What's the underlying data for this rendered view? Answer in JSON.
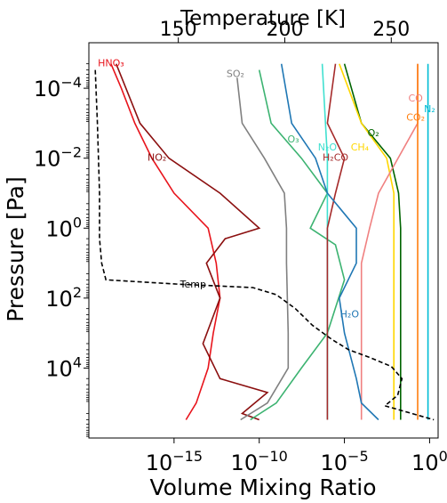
{
  "chart_data": {
    "type": "line",
    "title": "",
    "xlabel": "Volume Mixing Ratio",
    "x2label": "Temperature [K]",
    "ylabel": "Pressure [Pa]",
    "xscale": "log",
    "yscale": "log",
    "y_inverted": true,
    "xlim": [
      1e-20,
      3.16
    ],
    "x2lim": [
      108,
      272
    ],
    "ylim": [
      1000000.0,
      5e-06
    ],
    "x_ticks": [
      {
        "value": 1e-15,
        "base": "10",
        "exp": "−15"
      },
      {
        "value": 1e-10,
        "base": "10",
        "exp": "−10"
      },
      {
        "value": 1e-05,
        "base": "10",
        "exp": "−5"
      },
      {
        "value": 1,
        "base": "10",
        "exp": "0"
      }
    ],
    "x2_ticks": [
      {
        "value": 150,
        "label": "150"
      },
      {
        "value": 200,
        "label": "200"
      },
      {
        "value": 250,
        "label": "250"
      }
    ],
    "y_ticks": [
      {
        "value": 0.0001,
        "base": "10",
        "exp": "−4"
      },
      {
        "value": 0.01,
        "base": "10",
        "exp": "−2"
      },
      {
        "value": 1,
        "base": "10",
        "exp": "0"
      },
      {
        "value": 100,
        "base": "10",
        "exp": "2"
      },
      {
        "value": 10000,
        "base": "10",
        "exp": "4"
      }
    ],
    "grid": false,
    "legend": "none",
    "temperature": {
      "name": "Temp",
      "color": "#000000",
      "style": "dashed",
      "points": [
        [
          111,
          3e-05
        ],
        [
          112,
          0.001
        ],
        [
          113,
          0.1
        ],
        [
          113,
          2
        ],
        [
          114,
          10
        ],
        [
          116,
          30
        ],
        [
          150,
          40
        ],
        [
          185,
          50
        ],
        [
          196,
          80
        ],
        [
          205,
          200
        ],
        [
          213,
          600
        ],
        [
          222,
          1500
        ],
        [
          230,
          3000
        ],
        [
          240,
          5000
        ],
        [
          250,
          9000
        ],
        [
          255,
          20000
        ],
        [
          253,
          60000
        ],
        [
          247,
          120000
        ],
        [
          270,
          300000
        ]
      ]
    },
    "series": [
      {
        "name": "HNO₃",
        "color": "#e8141c",
        "label_pos": [
          2e-19,
          2e-05
        ],
        "points": [
          [
            2e-19,
            2e-05
          ],
          [
            8e-19,
            0.0001
          ],
          [
            5e-18,
            0.001
          ],
          [
            5e-17,
            0.01
          ],
          [
            1e-15,
            0.1
          ],
          [
            1e-13,
            1
          ],
          [
            3e-13,
            10
          ],
          [
            5e-13,
            100
          ],
          [
            2e-13,
            1000
          ],
          [
            1e-13,
            10000
          ],
          [
            2e-14,
            100000
          ],
          [
            5e-15,
            300000
          ]
        ]
      },
      {
        "name": "NO₂",
        "color": "#8b0f0f",
        "label_pos": [
          1e-16,
          0.01
        ],
        "points": [
          [
            4e-19,
            2e-05
          ],
          [
            1e-17,
            0.001
          ],
          [
            5e-16,
            0.01
          ],
          [
            5e-13,
            0.1
          ],
          [
            1e-10,
            1
          ],
          [
            1e-12,
            2
          ],
          [
            8e-14,
            10
          ],
          [
            5e-13,
            100
          ],
          [
            5e-14,
            2000
          ],
          [
            5e-13,
            20000
          ],
          [
            3e-10,
            50000
          ],
          [
            1e-11,
            200000
          ],
          [
            1e-10,
            300000
          ]
        ]
      },
      {
        "name": "SO₂",
        "color": "#808080",
        "label_pos": [
          4e-12,
          4e-05
        ],
        "points": [
          [
            5e-12,
            5e-05
          ],
          [
            1e-11,
            0.001
          ],
          [
            2e-10,
            0.01
          ],
          [
            3e-09,
            0.1
          ],
          [
            4e-09,
            1
          ],
          [
            4e-09,
            10
          ],
          [
            5e-09,
            1000
          ],
          [
            5e-09,
            10000
          ],
          [
            3e-10,
            100000
          ],
          [
            8e-12,
            300000
          ]
        ]
      },
      {
        "name": "O₃",
        "color": "#3cb371",
        "label_pos": [
          1e-08,
          0.003
        ],
        "points": [
          [
            1e-10,
            3e-05
          ],
          [
            5e-10,
            0.001
          ],
          [
            3e-08,
            0.01
          ],
          [
            1e-06,
            0.1
          ],
          [
            1e-07,
            1
          ],
          [
            3e-06,
            3
          ],
          [
            1e-05,
            30
          ],
          [
            1e-06,
            1000
          ],
          [
            3e-08,
            10000
          ],
          [
            1e-09,
            100000
          ],
          [
            3e-11,
            300000
          ]
        ]
      },
      {
        "name": "O₂",
        "color": "#006400",
        "label_pos": [
          0.0005,
          0.002
        ],
        "points": [
          [
            1e-05,
            2e-05
          ],
          [
            0.0001,
            0.001
          ],
          [
            0.005,
            0.01
          ],
          [
            0.015,
            0.1
          ],
          [
            0.02,
            1
          ],
          [
            0.02,
            300000
          ]
        ]
      },
      {
        "name": "N₂O",
        "color": "#40e0d0",
        "label_pos": [
          1e-06,
          0.005
        ],
        "points": [
          [
            5e-07,
            2e-05
          ],
          [
            1e-06,
            0.01
          ],
          [
            1e-06,
            300000
          ]
        ]
      },
      {
        "name": "CH₄",
        "color": "#ffd700",
        "label_pos": [
          8e-05,
          0.005
        ],
        "points": [
          [
            5e-06,
            2e-05
          ],
          [
            0.0001,
            0.001
          ],
          [
            0.003,
            0.01
          ],
          [
            0.008,
            0.1
          ],
          [
            0.008,
            300000
          ]
        ]
      },
      {
        "name": "CO",
        "color": "#f08080",
        "label_pos": [
          0.15,
          0.0002
        ],
        "points": [
          [
            0.2,
            2e-05
          ],
          [
            0.2,
            0.001
          ],
          [
            0.001,
            0.1
          ],
          [
            0.0003,
            1
          ],
          [
            0.0001,
            10
          ],
          [
            0.0001,
            100
          ],
          [
            0.0001,
            300000
          ]
        ]
      },
      {
        "name": "CO₂",
        "color": "#ff7f0e",
        "label_pos": [
          0.15,
          0.0007
        ],
        "points": [
          [
            0.2,
            2e-05
          ],
          [
            0.2,
            300000
          ]
        ]
      },
      {
        "name": "N₂",
        "color": "#00bcd4",
        "label_pos": [
          1.0,
          0.0004
        ],
        "points": [
          [
            0.8,
            2e-05
          ],
          [
            0.8,
            300000
          ]
        ]
      },
      {
        "name": "H₂CO",
        "color": "#a52a2a",
        "label_pos": [
          3e-06,
          0.01
        ],
        "points": [
          [
            3e-06,
            2e-05
          ],
          [
            1e-06,
            0.001
          ],
          [
            1e-05,
            0.01
          ],
          [
            3e-06,
            0.1
          ],
          [
            1e-06,
            1
          ],
          [
            1e-06,
            300000
          ]
        ]
      },
      {
        "name": "H₂O",
        "color": "#1f77b4",
        "label_pos": [
          2e-05,
          300
        ],
        "points": [
          [
            2e-09,
            2e-05
          ],
          [
            8e-09,
            0.001
          ],
          [
            2e-07,
            0.01
          ],
          [
            1e-06,
            0.1
          ],
          [
            5e-05,
            1
          ],
          [
            5e-05,
            10
          ],
          [
            5e-06,
            100
          ],
          [
            1e-05,
            1000
          ],
          [
            5e-05,
            20000
          ],
          [
            0.0001,
            100000
          ],
          [
            0.001,
            300000
          ]
        ]
      }
    ]
  }
}
